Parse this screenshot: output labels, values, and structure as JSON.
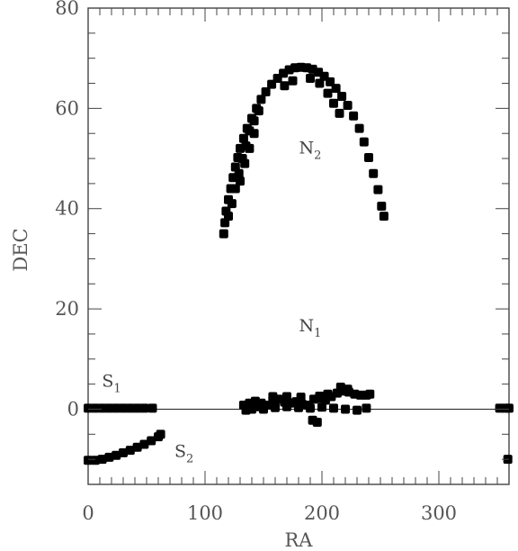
{
  "chart_data": {
    "type": "scatter",
    "title": "",
    "xlabel": "RA",
    "ylabel": "DEC",
    "xlim": [
      0,
      360
    ],
    "ylim": [
      -15,
      80
    ],
    "x_ticks": [
      0,
      100,
      200,
      300
    ],
    "y_ticks": [
      0,
      20,
      40,
      60,
      80
    ],
    "grid": false,
    "legend": "none",
    "reference_lines": [
      {
        "axis": "y",
        "value": 0
      }
    ],
    "point_color": "#000000",
    "region_labels": [
      {
        "name": "N",
        "sub": "2",
        "x": 190,
        "y": 51
      },
      {
        "name": "N",
        "sub": "1",
        "x": 190,
        "y": 15.5
      },
      {
        "name": "S",
        "sub": "1",
        "x": 20,
        "y": 4.5
      },
      {
        "name": "S",
        "sub": "2",
        "x": 82,
        "y": -9.5
      }
    ],
    "series": [
      {
        "points": [
          [
            0,
            0.2
          ],
          [
            6,
            0.2
          ],
          [
            12,
            0.2
          ],
          [
            18,
            0.2
          ],
          [
            24,
            0.2
          ],
          [
            30,
            0.2
          ],
          [
            36,
            0.2
          ],
          [
            42,
            0.2
          ],
          [
            48,
            0.2
          ],
          [
            55,
            0.2
          ],
          [
            352,
            0.2
          ],
          [
            357,
            0.2
          ],
          [
            360,
            0.2
          ],
          [
            0,
            -10.2
          ],
          [
            6,
            -10.2
          ],
          [
            12,
            -10.0
          ],
          [
            18,
            -9.6
          ],
          [
            24,
            -9.2
          ],
          [
            30,
            -8.7
          ],
          [
            36,
            -8.2
          ],
          [
            42,
            -7.6
          ],
          [
            48,
            -7.0
          ],
          [
            54,
            -6.3
          ],
          [
            60,
            -5.5
          ],
          [
            62,
            -5.0
          ],
          [
            359,
            -10.0
          ],
          [
            133,
            0.8
          ],
          [
            138,
            1.2
          ],
          [
            143,
            1.6
          ],
          [
            148,
            1.2
          ],
          [
            153,
            0.8
          ],
          [
            158,
            1.8
          ],
          [
            163,
            2.0
          ],
          [
            168,
            1.4
          ],
          [
            173,
            1.2
          ],
          [
            178,
            1.5
          ],
          [
            183,
            1.0
          ],
          [
            188,
            0.8
          ],
          [
            193,
            2.0
          ],
          [
            198,
            2.2
          ],
          [
            203,
            1.8
          ],
          [
            208,
            2.5
          ],
          [
            213,
            3.2
          ],
          [
            218,
            3.6
          ],
          [
            223,
            3.4
          ],
          [
            228,
            3.0
          ],
          [
            233,
            2.8
          ],
          [
            238,
            2.8
          ],
          [
            241,
            3.0
          ],
          [
            135,
            -0.2
          ],
          [
            140,
            0.0
          ],
          [
            145,
            0.5
          ],
          [
            150,
            0.0
          ],
          [
            160,
            0.3
          ],
          [
            170,
            0.5
          ],
          [
            180,
            0.3
          ],
          [
            190,
            0.2
          ],
          [
            200,
            0.4
          ],
          [
            210,
            0.2
          ],
          [
            220,
            0.0
          ],
          [
            230,
            -0.2
          ],
          [
            238,
            0.2
          ],
          [
            158,
            2.5
          ],
          [
            170,
            2.5
          ],
          [
            182,
            2.4
          ],
          [
            198,
            2.6
          ],
          [
            205,
            3.0
          ],
          [
            192,
            -2.2
          ],
          [
            196,
            -2.6
          ],
          [
            216,
            4.4
          ],
          [
            222,
            4.0
          ],
          [
            116,
            35.0
          ],
          [
            117,
            37.2
          ],
          [
            118,
            39.5
          ],
          [
            120,
            41.8
          ],
          [
            122,
            44.0
          ],
          [
            124,
            46.2
          ],
          [
            126,
            48.3
          ],
          [
            128,
            50.2
          ],
          [
            130,
            52.0
          ],
          [
            133,
            54.0
          ],
          [
            136,
            56.0
          ],
          [
            140,
            58.0
          ],
          [
            144,
            60.0
          ],
          [
            148,
            61.8
          ],
          [
            152,
            63.3
          ],
          [
            157,
            64.8
          ],
          [
            162,
            66.0
          ],
          [
            167,
            67.0
          ],
          [
            172,
            67.7
          ],
          [
            177,
            68.1
          ],
          [
            182,
            68.2
          ],
          [
            187,
            68.1
          ],
          [
            192,
            67.8
          ],
          [
            197,
            67.2
          ],
          [
            202,
            66.4
          ],
          [
            207,
            65.3
          ],
          [
            212,
            64.0
          ],
          [
            217,
            62.4
          ],
          [
            222,
            60.6
          ],
          [
            227,
            58.5
          ],
          [
            232,
            56.0
          ],
          [
            236,
            53.3
          ],
          [
            240,
            50.2
          ],
          [
            244,
            47.0
          ],
          [
            248,
            43.8
          ],
          [
            251,
            40.5
          ],
          [
            253,
            38.5
          ],
          [
            120,
            38.5
          ],
          [
            123,
            41.0
          ],
          [
            126,
            44.0
          ],
          [
            129,
            47.0
          ],
          [
            132,
            50.0
          ],
          [
            135,
            52.5
          ],
          [
            138,
            55.5
          ],
          [
            142,
            57.5
          ],
          [
            146,
            59.5
          ],
          [
            168,
            64.5
          ],
          [
            175,
            65.5
          ],
          [
            190,
            66.0
          ],
          [
            198,
            65.0
          ],
          [
            205,
            63.0
          ],
          [
            210,
            61.0
          ],
          [
            215,
            59.0
          ],
          [
            130,
            45.5
          ],
          [
            134,
            49.0
          ],
          [
            138,
            52.0
          ],
          [
            142,
            55.0
          ]
        ]
      }
    ]
  }
}
